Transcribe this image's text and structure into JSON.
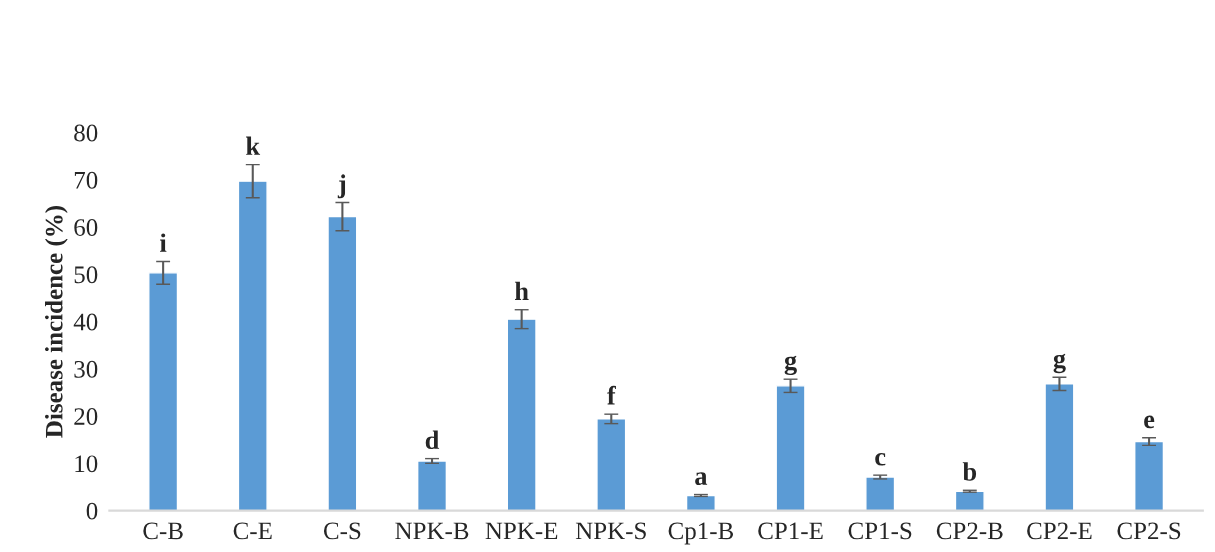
{
  "chart_data": {
    "type": "bar",
    "ylabel": "Disease incidence (%)",
    "categories": [
      "C-B",
      "C-E",
      "C-S",
      "NPK-B",
      "NPK-E",
      "NPK-S",
      "Cp1-B",
      "CP1-E",
      "CP1-S",
      "CP2-B",
      "CP2-E",
      "CP2-S"
    ],
    "series": [
      {
        "color": "#5b9bd5",
        "values": [
          50.3,
          69.7,
          62.2,
          10.5,
          40.5,
          19.4,
          3.2,
          26.4,
          7.1,
          4.1,
          26.8,
          14.6
        ],
        "errors": [
          2.4,
          3.5,
          3.0,
          0.5,
          2.0,
          1.0,
          0.2,
          1.4,
          0.4,
          0.2,
          1.4,
          0.8
        ],
        "value_labels": [
          "i",
          "k",
          "j",
          "d",
          "h",
          "f",
          "a",
          "g",
          "c",
          "b",
          "g",
          "e"
        ]
      }
    ],
    "ylim": [
      0,
      80
    ],
    "yticks": [
      0,
      10,
      20,
      30,
      40,
      50,
      60,
      70,
      80
    ],
    "grid": false,
    "legend": false
  }
}
